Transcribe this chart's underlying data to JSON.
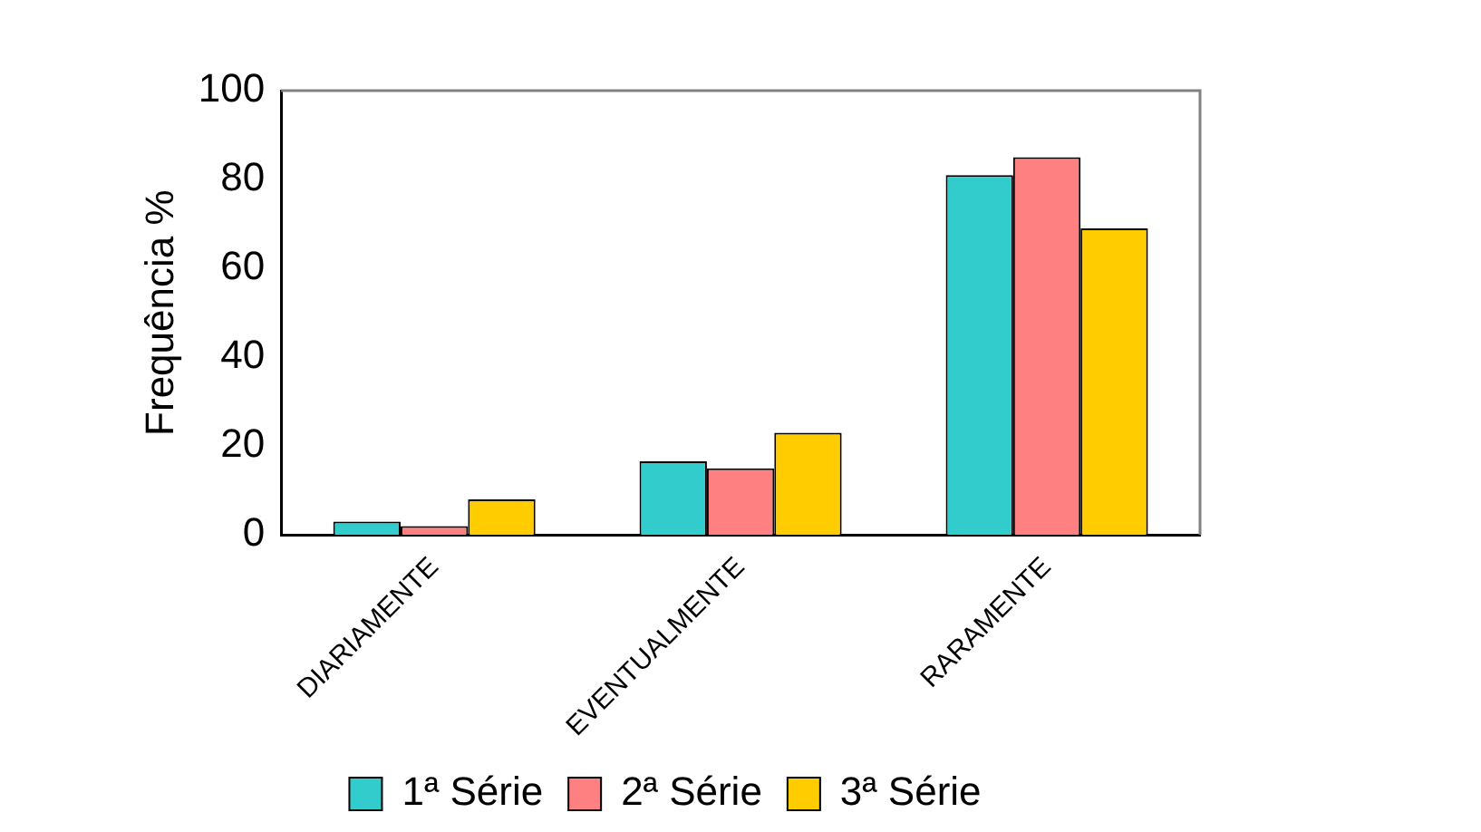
{
  "chart_data": {
    "type": "bar",
    "ylabel": "Frequência %",
    "categories": [
      "DIARIAMENTE",
      "EVENTUALMENTE",
      "RARAMENTE"
    ],
    "series": [
      {
        "name": "1ª Série",
        "color": "#33cccc",
        "values": [
          3,
          16.6,
          81
        ]
      },
      {
        "name": "2ª Série",
        "color": "#ff8080",
        "values": [
          2,
          15,
          85
        ]
      },
      {
        "name": "3ª Série",
        "color": "#ffcc00",
        "values": [
          8,
          23,
          69
        ]
      }
    ],
    "ylim": [
      0,
      100
    ],
    "yticks": [
      0,
      20,
      40,
      60,
      80,
      100
    ],
    "grid": false,
    "legend": "bottom"
  }
}
